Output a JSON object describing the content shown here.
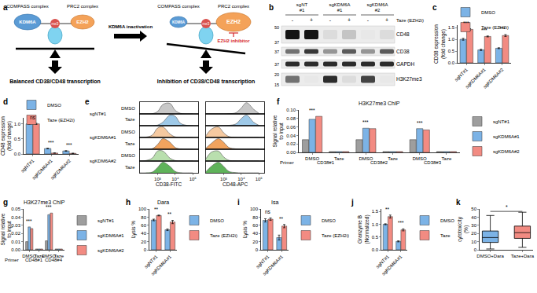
{
  "diagram": {
    "panel": "a",
    "left": {
      "complex1": "COMPASS complex",
      "complex2": "PRC2 complex",
      "enzyme1": "KDM6A",
      "enzyme2": "EZH2",
      "mark": "me3",
      "caption": "Balanced CD38/CD48 transcription"
    },
    "transition": "KDM6A inactivation",
    "right": {
      "complex1": "COMPASS complex",
      "complex2": "PRC2 complex",
      "enzyme1": "KDM6A",
      "enzyme2": "EZH2",
      "mark": "me3",
      "inhibitor": "EZH2 inhibitor",
      "caption": "Inhibition of CD38/CD48 transcription"
    }
  },
  "blot": {
    "panel": "b",
    "lanes": [
      "sgNT #1",
      "sgKDM6A #1",
      "sgKDM6A #2"
    ],
    "treatment": "Taze (EZH2i)",
    "signs": [
      "-",
      "+",
      "-",
      "+",
      "-",
      "+"
    ],
    "rows": [
      {
        "label": "CD48",
        "markers": [
          50,
          37
        ],
        "intensity": [
          1,
          1,
          0.15,
          0.25,
          0.1,
          0.15
        ]
      },
      {
        "label": "CD38",
        "markers": [
          37
        ],
        "intensity": [
          0.6,
          0.85,
          0.45,
          0.7,
          0.45,
          0.7
        ]
      },
      {
        "label": "GAPDH",
        "markers": [
          37
        ],
        "intensity": [
          0.9,
          0.9,
          0.9,
          0.9,
          0.9,
          0.9
        ]
      },
      {
        "label": "H3K27me3",
        "markers": [
          20,
          15
        ],
        "intensity": [
          0.6,
          0.1,
          0.9,
          0.15,
          0.8,
          0.1
        ]
      }
    ]
  },
  "chart_data": [
    {
      "panel": "c",
      "type": "bar",
      "y_label": "CD38 expression (fold change)",
      "categories": [
        "sgNT#1",
        "sgKDM6A#1",
        "sgKDM6A#2"
      ],
      "series": [
        {
          "name": "DMSO",
          "color": "#7cb3e6",
          "values": [
            1.0,
            0.55,
            0.62
          ],
          "errors": [
            0.04,
            0.03,
            0.02
          ]
        },
        {
          "name": "Taze (EZH2i)",
          "color": "#f28b82",
          "values": [
            1.42,
            1.12,
            1.16
          ],
          "errors": [
            0.03,
            0.02,
            0.04
          ]
        }
      ],
      "ylim": [
        0,
        1.6
      ],
      "yticks": [
        {
          "value": 0,
          "label": "0.0"
        },
        {
          "value": 0.5,
          "label": "0.5"
        },
        {
          "value": 1,
          "label": "1.0"
        },
        {
          "value": 1.5,
          "label": "1.5"
        }
      ],
      "significance": [
        "***",
        "***",
        "***"
      ],
      "legend": "top"
    },
    {
      "panel": "d",
      "type": "bar",
      "y_label": "CD48 expression (fold change)",
      "categories": [
        "sgNT#1",
        "sgKDM6A#1",
        "sgKDM6A#2"
      ],
      "series": [
        {
          "name": "DMSO",
          "color": "#7cb3e6",
          "values": [
            1.0,
            0.18,
            0.1
          ],
          "errors": [
            0.02,
            0.01,
            0.01
          ]
        },
        {
          "name": "Taze (EZH2i)",
          "color": "#f28b82",
          "values": [
            1.0,
            0.03,
            0.02
          ],
          "errors": [
            0.02,
            0.005,
            0.005
          ]
        }
      ],
      "ylim": [
        0,
        1.2
      ],
      "yticks": [
        {
          "value": 0,
          "label": "0.0"
        },
        {
          "value": 0.5,
          "label": "0.5"
        },
        {
          "value": 1,
          "label": "1.0"
        }
      ],
      "significance": [
        "ns",
        "***",
        "***"
      ],
      "legend": "top"
    },
    {
      "panel": "e",
      "type": "ridgeline",
      "groups": [
        "sgNT#1",
        "sgKDM6A#1",
        "sgKDM6A#2"
      ],
      "treatments": [
        "DMSO",
        "Taze"
      ],
      "x": [
        100,
        200,
        500,
        1000,
        2000,
        5000,
        10000,
        20000,
        50000,
        100000
      ],
      "xlim": [
        100,
        200000
      ],
      "log": "x",
      "xticks": [
        {
          "value": 1000,
          "label": "10³"
        },
        {
          "value": 10000,
          "label": "10⁴"
        },
        {
          "value": 100000,
          "label": "10⁵"
        }
      ],
      "ylim": [
        0,
        1
      ],
      "tick_labels": "x",
      "plots": [
        {
          "x_label": "CD38-FITC",
          "reference_x": 4000,
          "series": [
            {
              "color": "#c8c8c8",
              "values": [
                0,
                0,
                0.02,
                0.2,
                0.8,
                0.9,
                0.3,
                0.05,
                0,
                0
              ]
            },
            {
              "color": "#9ec9e8",
              "values": [
                0,
                0,
                0,
                0.05,
                0.3,
                0.9,
                0.8,
                0.2,
                0.02,
                0
              ]
            },
            {
              "color": "#f5c9a0",
              "values": [
                0,
                0.02,
                0.2,
                0.8,
                0.9,
                0.3,
                0.05,
                0,
                0,
                0
              ]
            },
            {
              "color": "#f2a35e",
              "values": [
                0,
                0,
                0.05,
                0.4,
                0.9,
                0.6,
                0.15,
                0.02,
                0,
                0
              ]
            },
            {
              "color": "#b9dfae",
              "values": [
                0,
                0.03,
                0.25,
                0.85,
                0.85,
                0.25,
                0.04,
                0,
                0,
                0
              ]
            },
            {
              "color": "#5fb35a",
              "values": [
                0,
                0,
                0.06,
                0.45,
                0.9,
                0.55,
                0.12,
                0.01,
                0,
                0
              ]
            }
          ]
        },
        {
          "x_label": "CD48-APC",
          "series": [
            {
              "color": "#c8c8c8",
              "values": [
                0,
                0,
                0,
                0,
                0.02,
                0.1,
                0.5,
                0.95,
                0.4,
                0.05
              ]
            },
            {
              "color": "#9ec9e8",
              "values": [
                0,
                0,
                0,
                0,
                0.03,
                0.15,
                0.6,
                0.9,
                0.3,
                0.03
              ]
            },
            {
              "color": "#f5c9a0",
              "values": [
                0.15,
                0.7,
                0.9,
                0.4,
                0.08,
                0.01,
                0,
                0,
                0,
                0
              ]
            },
            {
              "color": "#f2a35e",
              "values": [
                0.1,
                0.5,
                0.9,
                0.6,
                0.15,
                0.03,
                0,
                0,
                0,
                0
              ]
            },
            {
              "color": "#b9dfae",
              "values": [
                0.2,
                0.75,
                0.85,
                0.35,
                0.06,
                0.01,
                0,
                0,
                0,
                0
              ]
            },
            {
              "color": "#5fb35a",
              "values": [
                0.1,
                0.55,
                0.9,
                0.55,
                0.12,
                0.02,
                0,
                0,
                0,
                0
              ]
            }
          ]
        }
      ]
    },
    {
      "panel": "f",
      "type": "bar",
      "title": "H3K27me3 ChIP",
      "y_label": "Signal relative to input",
      "categories": [
        "DMSO",
        "Taze",
        "DMSO",
        "Taze",
        "DMSO",
        "Taze"
      ],
      "groups": [
        "CD38#1",
        "CD38#2",
        "CD38#3"
      ],
      "group_label": "Primer",
      "series": [
        {
          "name": "sgNT#1",
          "color": "#9e9e9e",
          "values": [
            0.03,
            0.002,
            0.03,
            0.002,
            0.03,
            0.002
          ]
        },
        {
          "name": "sgKDM6A#1",
          "color": "#7cb3e6",
          "values": [
            0.078,
            0.002,
            0.057,
            0.002,
            0.056,
            0.002
          ]
        },
        {
          "name": "sgKDM6A#2",
          "color": "#f28b82",
          "values": [
            0.085,
            0.002,
            0.056,
            0.002,
            0.053,
            0.002
          ]
        }
      ],
      "ylim": [
        0,
        0.1
      ],
      "yticks": [
        {
          "value": 0,
          "label": "0.00"
        },
        {
          "value": 0.02,
          "label": "0.02"
        },
        {
          "value": 0.04,
          "label": "0.04"
        },
        {
          "value": 0.06,
          "label": "0.06"
        },
        {
          "value": 0.08,
          "label": "0.08"
        },
        {
          "value": 0.1,
          "label": "0.10"
        }
      ],
      "significance": [
        "***",
        null,
        "***",
        null,
        "***",
        null
      ],
      "legend": "right"
    },
    {
      "panel": "g",
      "type": "bar",
      "title": "H3K27me3 ChIP",
      "y_label": "Signal relative to input",
      "categories": [
        "DMSO",
        "Taze",
        "DMSO",
        "Taze"
      ],
      "groups": [
        "CD48#1",
        "CD48#4"
      ],
      "group_label": "Primer",
      "series": [
        {
          "name": "sgNT#1",
          "color": "#9e9e9e",
          "values": [
            0.01,
            0.001,
            0.011,
            0.001
          ]
        },
        {
          "name": "sgKDM6A#1",
          "color": "#7cb3e6",
          "values": [
            0.028,
            0.001,
            0.043,
            0.001
          ]
        },
        {
          "name": "sgKDM6A#2",
          "color": "#f28b82",
          "values": [
            0.026,
            0.001,
            0.045,
            0.001
          ]
        }
      ],
      "ylim": [
        0,
        0.05
      ],
      "yticks": [
        {
          "value": 0,
          "label": "0.00"
        },
        {
          "value": 0.01,
          "label": "0.01"
        },
        {
          "value": 0.02,
          "label": "0.02"
        },
        {
          "value": 0.03,
          "label": "0.03"
        },
        {
          "value": 0.04,
          "label": "0.04"
        },
        {
          "value": 0.05,
          "label": "0.05"
        }
      ],
      "significance": [
        "***",
        null,
        "***",
        null
      ],
      "legend": "right"
    },
    {
      "panel": "h",
      "type": "bar",
      "title": "Dara",
      "y_label": "Lysis %",
      "categories": [
        "sgNT#1",
        "sgKDM6A#1"
      ],
      "series": [
        {
          "name": "DMSO",
          "color": "#7cb3e6",
          "values": [
            73,
            49
          ],
          "errors": [
            2,
            2
          ]
        },
        {
          "name": "Taze (EZH2i)",
          "color": "#f28b82",
          "values": [
            84,
            68
          ],
          "errors": [
            1,
            4
          ]
        }
      ],
      "ylim": [
        0,
        100
      ],
      "yticks": [
        0,
        20,
        40,
        60,
        80,
        100
      ],
      "significance": [
        "**",
        "**"
      ],
      "legend": "right"
    },
    {
      "panel": "i",
      "type": "bar",
      "title": "Isa",
      "y_label": "Lysis %",
      "categories": [
        "sgNT#1",
        "sgKDM6A#1"
      ],
      "series": [
        {
          "name": "DMSO",
          "color": "#7cb3e6",
          "values": [
            72,
            30
          ],
          "errors": [
            4,
            6
          ]
        },
        {
          "name": "Taze (EZH2i)",
          "color": "#f28b82",
          "values": [
            75,
            58
          ],
          "errors": [
            3,
            4
          ]
        }
      ],
      "ylim": [
        0,
        100
      ],
      "yticks": [
        0,
        20,
        40,
        60,
        80,
        100
      ],
      "significance": [
        "ns",
        "**"
      ],
      "legend": "right"
    },
    {
      "panel": "j",
      "type": "bar",
      "y_label": "Granzyme B (Normalized)",
      "categories": [
        "sgNT#1",
        "sgKDM6A#1"
      ],
      "series": [
        {
          "name": "DMSO",
          "color": "#7cb3e6",
          "values": [
            1.0,
            0.33
          ],
          "errors": [
            0.02,
            0.02
          ]
        },
        {
          "name": "Taze",
          "color": "#f28b82",
          "values": [
            1.3,
            0.78
          ],
          "errors": [
            0.06,
            0.04
          ]
        }
      ],
      "ylim": [
        0,
        1.6
      ],
      "yticks": [
        {
          "value": 0,
          "label": "0.0"
        },
        {
          "value": 0.5,
          "label": "0.5"
        },
        {
          "value": 1,
          "label": "1.0"
        },
        {
          "value": 1.5,
          "label": "1.5"
        }
      ],
      "significance": [
        "**",
        "***"
      ],
      "legend": "right"
    },
    {
      "panel": "k",
      "type": "box",
      "y_label": "cytotoxicity (%)",
      "categories": [
        "DMSO+Dara",
        "Taze+Dara"
      ],
      "boxes": [
        {
          "min": 1,
          "q1": 9,
          "median": 15,
          "q3": 23,
          "max": 42
        },
        {
          "min": 3,
          "q1": 14,
          "median": 21,
          "q3": 29,
          "max": 46
        }
      ],
      "colors": [
        "#7cb3e6",
        "#f28b82"
      ],
      "ylim": [
        0,
        50
      ],
      "yticks": [
        0,
        10,
        20,
        30,
        40,
        50
      ],
      "significance": "*"
    }
  ]
}
